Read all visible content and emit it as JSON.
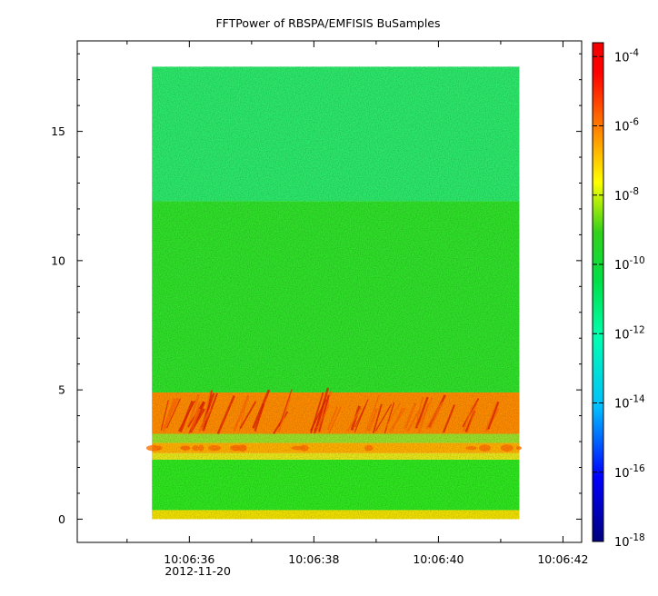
{
  "chart_data": {
    "type": "heatmap",
    "title": "FFTPower of RBSPA/EMFISIS  BuSamples",
    "x_tick_labels": [
      "10:06:36",
      "10:06:38",
      "10:06:40",
      "10:06:42"
    ],
    "x_date_label": "2012-11-20",
    "y_tick_labels": [
      "0",
      "5",
      "10",
      "15"
    ],
    "ylim": [
      -0.9,
      18.5
    ],
    "xlim_seconds": [
      34.2,
      42.3
    ],
    "data_extent": {
      "t_start": 35.4,
      "t_end": 41.3,
      "y_min": 0.0,
      "y_max": 17.5
    },
    "colorbar": {
      "scale": "log",
      "range": [
        -18,
        -3.6
      ],
      "tick_exponents": [
        -18,
        -16,
        -14,
        -12,
        -10,
        -8,
        -6,
        -4
      ],
      "colors": [
        "#00007f",
        "#0000ff",
        "#00bfff",
        "#00ffb0",
        "#00e04a",
        "#33d11a",
        "#ffff00",
        "#ff8a00",
        "#ff0000",
        "#f20000"
      ]
    },
    "bands": [
      {
        "y_from": 0.0,
        "y_to": 0.35,
        "level": "high",
        "color": "#f0e000"
      },
      {
        "y_from": 0.35,
        "y_to": 2.3,
        "level": "background",
        "color": "#2fe61f"
      },
      {
        "y_from": 2.3,
        "y_to": 2.55,
        "level": "elevated",
        "color": "#e7e61a"
      },
      {
        "y_from": 2.55,
        "y_to": 2.95,
        "level": "strong",
        "color": "#ffb000"
      },
      {
        "y_from": 2.95,
        "y_to": 3.3,
        "level": "moderate",
        "color": "#9be02a"
      },
      {
        "y_from": 3.3,
        "y_to": 4.9,
        "level": "strongest",
        "color": "#ff8c00"
      },
      {
        "y_from": 4.9,
        "y_to": 12.3,
        "level": "background",
        "color": "#30e02a"
      },
      {
        "y_from": 12.3,
        "y_to": 17.5,
        "level": "low",
        "color": "#2ce86a"
      }
    ]
  }
}
